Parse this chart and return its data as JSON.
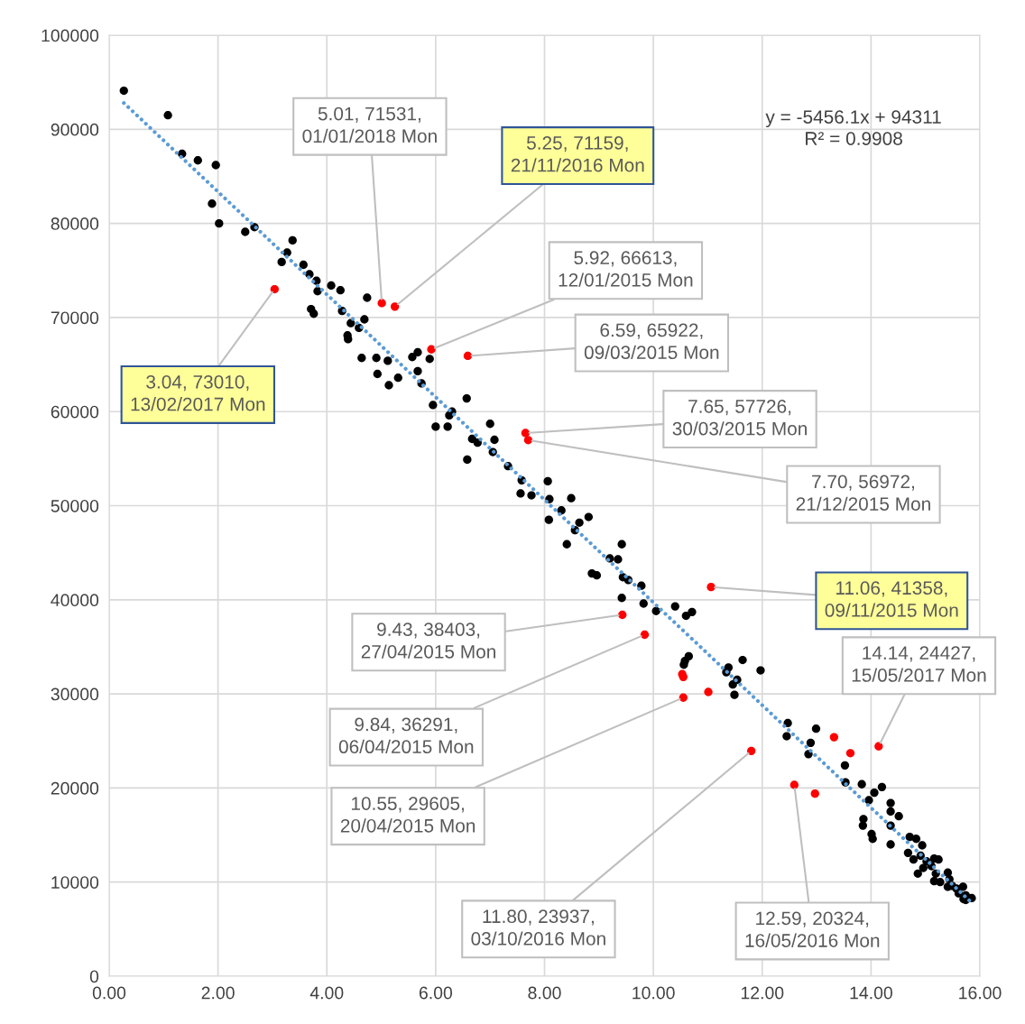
{
  "chart_data": {
    "type": "scatter",
    "series": [
      {
        "color": "#000000",
        "marker": "circle",
        "x": [
          0.27,
          1.08,
          1.34,
          1.63,
          1.96,
          1.89,
          2.02,
          2.5,
          2.67,
          3.17,
          3.27,
          3.37,
          3.57,
          3.68,
          3.81,
          3.83,
          4.08,
          4.25,
          3.71,
          3.76,
          4.28,
          4.74,
          4.69,
          4.44,
          4.59,
          4.38,
          4.39,
          4.64,
          4.91,
          5.12,
          4.93,
          5.14,
          5.31,
          5.57,
          5.67,
          5.89,
          5.67,
          5.74,
          5.95,
          6.3,
          6.25,
          6.0,
          6.22,
          6.57,
          7.0,
          6.67,
          6.77,
          7.08,
          7.05,
          6.58,
          7.33,
          7.58,
          7.56,
          7.76,
          8.06,
          8.09,
          8.08,
          8.31,
          8.49,
          8.81,
          8.64,
          8.56,
          8.41,
          9.2,
          9.35,
          9.42,
          8.87,
          8.96,
          9.44,
          9.54,
          9.78,
          9.42,
          9.82,
          10.05,
          10.4,
          10.6,
          10.71,
          10.65,
          10.58,
          10.56,
          11.64,
          11.38,
          11.34,
          11.54,
          11.46,
          11.49,
          11.97,
          12.47,
          12.45,
          12.99,
          12.89,
          12.85,
          13.52,
          13.53,
          13.83,
          14.2,
          14.06,
          13.96,
          14.36,
          14.36,
          14.51,
          13.86,
          13.85,
          14.36,
          14.01,
          14.03,
          14.36,
          14.71,
          14.83,
          14.94,
          14.68,
          14.78,
          14.91,
          15.02,
          15.16,
          15.24,
          14.86,
          14.96,
          15.11,
          15.19,
          15.41,
          15.16,
          15.27,
          15.44,
          15.49,
          15.57,
          15.41,
          15.69,
          15.61,
          15.74,
          15.7,
          15.85,
          15.74
        ],
        "values": [
          94100,
          91500,
          87400,
          86700,
          86200,
          82100,
          80000,
          79100,
          79600,
          75900,
          76900,
          78200,
          75600,
          74600,
          73900,
          72800,
          73400,
          72900,
          70900,
          70400,
          70700,
          72100,
          69800,
          69400,
          68900,
          68100,
          67700,
          65700,
          65700,
          65400,
          64000,
          62800,
          63600,
          65800,
          66300,
          65600,
          64300,
          63000,
          60700,
          60000,
          59600,
          58400,
          58400,
          61400,
          58700,
          57100,
          56700,
          57000,
          55700,
          54900,
          54200,
          52700,
          51300,
          51100,
          52600,
          50700,
          48500,
          49500,
          50800,
          48800,
          48200,
          47400,
          45900,
          44400,
          44300,
          45900,
          42800,
          42600,
          42400,
          42100,
          41500,
          40200,
          39600,
          38800,
          39300,
          38300,
          38700,
          34000,
          33500,
          33100,
          33600,
          32800,
          32300,
          31500,
          31000,
          29900,
          32500,
          26900,
          25500,
          26300,
          24800,
          23600,
          22400,
          20600,
          20400,
          20100,
          19500,
          18700,
          18400,
          17500,
          17000,
          16700,
          16000,
          16000,
          15100,
          14600,
          14000,
          14800,
          14600,
          13900,
          13100,
          12400,
          12800,
          12200,
          12500,
          12400,
          10900,
          11500,
          11700,
          10900,
          11000,
          10100,
          10000,
          10300,
          9600,
          9300,
          9500,
          9500,
          8800,
          8600,
          8200,
          8300,
          8100
        ]
      },
      {
        "color": "#ff0000",
        "marker": "circle",
        "x": [
          5.01,
          5.25,
          3.04,
          5.92,
          6.59,
          7.65,
          7.7,
          11.06,
          14.14,
          9.43,
          9.84,
          10.55,
          11.8,
          12.59,
          10.55,
          10.53,
          11.01,
          12.97,
          13.32,
          13.62
        ],
        "values": [
          71531,
          71159,
          73010,
          66613,
          65922,
          57726,
          56972,
          41358,
          24427,
          38403,
          36291,
          29605,
          23937,
          20324,
          31800,
          32100,
          30200,
          19400,
          25400,
          23700
        ]
      },
      {
        "type": "line",
        "color": "#5b9bd5",
        "line_style": "dotted",
        "marker": "none",
        "x": [
          0.27,
          15.85
        ],
        "values": [
          92800,
          7800
        ]
      }
    ],
    "xlim": [
      0,
      16
    ],
    "ylim": [
      0,
      100000
    ],
    "xticks": [
      {
        "value": 0,
        "label": "0.00"
      },
      {
        "value": 2,
        "label": "2.00"
      },
      {
        "value": 4,
        "label": "4.00"
      },
      {
        "value": 6,
        "label": "6.00"
      },
      {
        "value": 8,
        "label": "8.00"
      },
      {
        "value": 10,
        "label": "10.00"
      },
      {
        "value": 12,
        "label": "12.00"
      },
      {
        "value": 14,
        "label": "14.00"
      },
      {
        "value": 16,
        "label": "16.00"
      }
    ],
    "yticks": [
      0,
      10000,
      20000,
      30000,
      40000,
      50000,
      60000,
      70000,
      80000,
      90000,
      100000
    ],
    "grid": true,
    "annotations": [
      "y = -5456.1x + 94311\nR² = 0.9908",
      {
        "text": "5.01, 71531,\n01/01/2018 Mon",
        "x": 5.01,
        "y": 71531
      },
      {
        "text": "5.25, 71159,\n21/11/2016 Mon",
        "x": 5.25,
        "y": 71159
      },
      {
        "text": "3.04, 73010,\n13/02/2017 Mon",
        "x": 3.04,
        "y": 73010
      },
      {
        "text": "5.92, 66613,\n12/01/2015 Mon",
        "x": 5.92,
        "y": 66613
      },
      {
        "text": "6.59, 65922,\n09/03/2015 Mon",
        "x": 6.59,
        "y": 65922
      },
      {
        "text": "7.65, 57726,\n30/03/2015 Mon",
        "x": 7.65,
        "y": 57726
      },
      {
        "text": "7.70, 56972,\n21/12/2015 Mon",
        "x": 7.7,
        "y": 56972
      },
      {
        "text": "11.06, 41358,\n09/11/2015 Mon",
        "x": 11.06,
        "y": 41358
      },
      {
        "text": "14.14, 24427,\n15/05/2017 Mon",
        "x": 14.14,
        "y": 24427
      },
      {
        "text": "9.43, 38403,\n27/04/2015 Mon",
        "x": 9.43,
        "y": 38403
      },
      {
        "text": "9.84, 36291,\n06/04/2015 Mon",
        "x": 9.84,
        "y": 36291
      },
      {
        "text": "10.55, 29605,\n20/04/2015 Mon",
        "x": 10.55,
        "y": 29605
      },
      {
        "text": "11.80, 23937,\n03/10/2016 Mon",
        "x": 11.8,
        "y": 23937
      },
      {
        "text": "12.59, 20324,\n16/05/2016 Mon",
        "x": 12.59,
        "y": 20324
      }
    ]
  }
}
